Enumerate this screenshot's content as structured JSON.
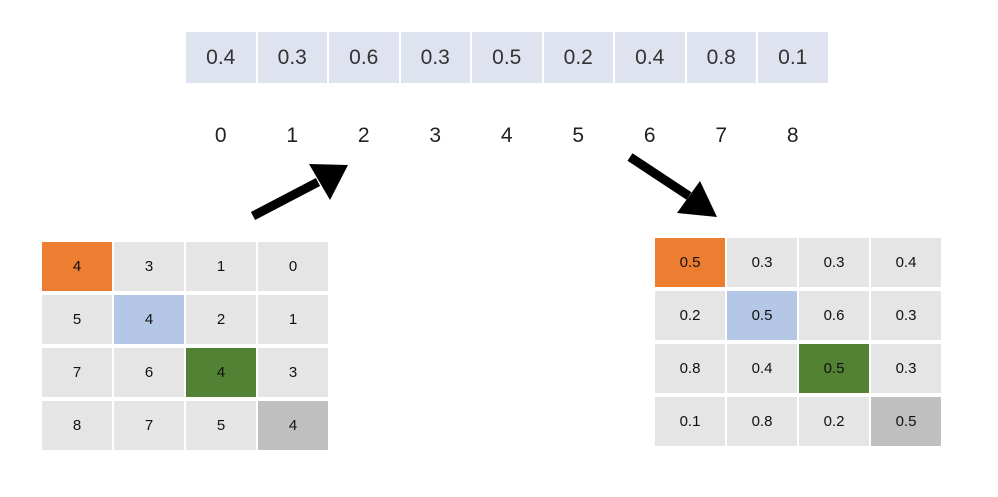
{
  "array": {
    "values": [
      "0.4",
      "0.3",
      "0.6",
      "0.3",
      "0.5",
      "0.2",
      "0.4",
      "0.8",
      "0.1"
    ],
    "indices": [
      "0",
      "1",
      "2",
      "3",
      "4",
      "5",
      "6",
      "7",
      "8"
    ]
  },
  "left_grid": {
    "rows": [
      [
        "4",
        "3",
        "1",
        "0"
      ],
      [
        "5",
        "4",
        "2",
        "1"
      ],
      [
        "7",
        "6",
        "4",
        "3"
      ],
      [
        "8",
        "7",
        "5",
        "4"
      ]
    ]
  },
  "right_grid": {
    "rows": [
      [
        "0.5",
        "0.3",
        "0.3",
        "0.4"
      ],
      [
        "0.2",
        "0.5",
        "0.6",
        "0.3"
      ],
      [
        "0.8",
        "0.4",
        "0.5",
        "0.3"
      ],
      [
        "0.1",
        "0.8",
        "0.2",
        "0.5"
      ]
    ]
  },
  "colors": {
    "orange": "#ed7d31",
    "blue": "#b4c7e7",
    "green": "#548235",
    "gray": "#bfbfbf",
    "cell": "#e5e5e5",
    "array_cell": "#dfe3ef"
  }
}
